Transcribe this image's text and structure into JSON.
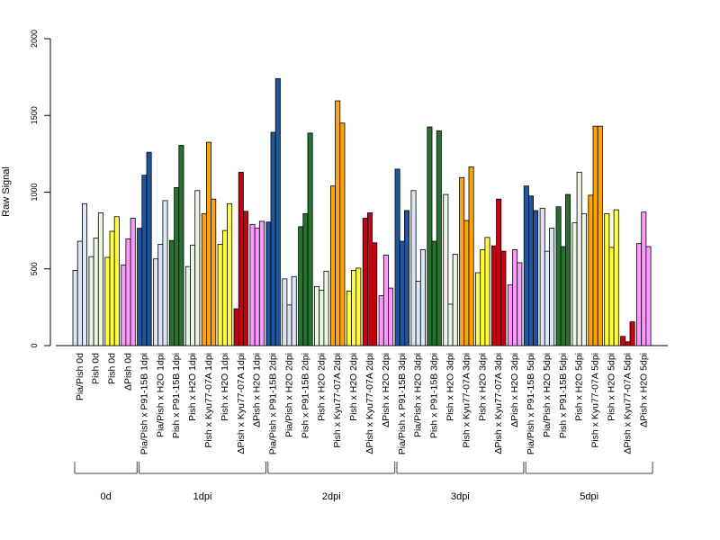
{
  "chart_data": {
    "type": "bar",
    "ylabel": "Raw Signal",
    "ylim": [
      0,
      2000
    ],
    "yticks": [
      0,
      500,
      1000,
      1500,
      2000
    ],
    "grid": false,
    "legend": "none",
    "bars_per_category": 3,
    "categories": [
      {
        "label": "Pia/Pish 0d",
        "color": "#dce7f5",
        "values": [
          490,
          680,
          925
        ]
      },
      {
        "label": "Pish 0d",
        "color": "#eaf5e4",
        "values": [
          580,
          700,
          865
        ]
      },
      {
        "label": "Pish 0d",
        "color": "#ffff33",
        "values": [
          575,
          745,
          840
        ]
      },
      {
        "label": "ΔPish 0d",
        "color": "#ff99ff",
        "values": [
          525,
          695,
          830
        ]
      },
      {
        "label": "Pia/Pish x P91-15B 1dpi",
        "color": "#1f56a0",
        "values": [
          765,
          1110,
          1260
        ]
      },
      {
        "label": "Pia/Pish x H2O 1dpi",
        "color": "#dce7f5",
        "values": [
          565,
          660,
          945
        ]
      },
      {
        "label": "Pish x P91-15B 1dpi",
        "color": "#267330",
        "values": [
          685,
          1030,
          1305
        ]
      },
      {
        "label": "Pish x H2O 1dpi",
        "color": "#eaf5e4",
        "values": [
          515,
          655,
          1010
        ]
      },
      {
        "label": "Pish x Kyu77-07A 1dpi",
        "color": "#ffa500",
        "values": [
          860,
          1325,
          955
        ]
      },
      {
        "label": "Pish x H2O 1dpi",
        "color": "#ffff33",
        "values": [
          660,
          750,
          925
        ]
      },
      {
        "label": "ΔPish x Kyu77-07A 1dpi",
        "color": "#cc0011",
        "values": [
          240,
          1130,
          875
        ]
      },
      {
        "label": "ΔPish x H2O 1dpi",
        "color": "#ff99ff",
        "values": [
          790,
          765,
          810
        ]
      },
      {
        "label": "Pia/Pish x P91-15B 2dpi",
        "color": "#1f56a0",
        "values": [
          805,
          1390,
          1740
        ]
      },
      {
        "label": "Pia/Pish x H2O 2dpi",
        "color": "#dce7f5",
        "values": [
          435,
          265,
          450
        ]
      },
      {
        "label": "Pish x P91-15B 2dpi",
        "color": "#267330",
        "values": [
          775,
          860,
          1385
        ]
      },
      {
        "label": "Pish x H2O 2dpi",
        "color": "#eaf5e4",
        "values": [
          385,
          360,
          485
        ]
      },
      {
        "label": "Pish x Kyu77-07A 2dpi",
        "color": "#ffa500",
        "values": [
          1040,
          1595,
          1450
        ]
      },
      {
        "label": "Pish x H2O 2dpi",
        "color": "#ffff33",
        "values": [
          355,
          490,
          505
        ]
      },
      {
        "label": "ΔPish x Kyu77-07A 2dpi",
        "color": "#cc0011",
        "values": [
          830,
          865,
          670
        ]
      },
      {
        "label": "ΔPish x H2O 2dpi",
        "color": "#ff99ff",
        "values": [
          325,
          590,
          375
        ]
      },
      {
        "label": "Pia/Pish x P91-15B 3dpi",
        "color": "#1f56a0",
        "values": [
          1150,
          680,
          880
        ]
      },
      {
        "label": "Pia/Pish x H2O 3dpi",
        "color": "#dce7f5",
        "values": [
          1010,
          420,
          625
        ]
      },
      {
        "label": "Pish x P91-15B 3dpi",
        "color": "#267330",
        "values": [
          1425,
          680,
          1400
        ]
      },
      {
        "label": "Pish x H2O 3dpi",
        "color": "#eaf5e4",
        "values": [
          985,
          270,
          595
        ]
      },
      {
        "label": "Pish x Kyu77-07A 3dpi",
        "color": "#ffa500",
        "values": [
          1095,
          815,
          1165
        ]
      },
      {
        "label": "Pish x H2O 3dpi",
        "color": "#ffff33",
        "values": [
          475,
          625,
          705
        ]
      },
      {
        "label": "ΔPish x Kyu77-07A 3dpi",
        "color": "#cc0011",
        "values": [
          650,
          955,
          615
        ]
      },
      {
        "label": "ΔPish x H2O 3dpi",
        "color": "#ff99ff",
        "values": [
          395,
          625,
          540
        ]
      },
      {
        "label": "Pia/Pish x P91-15B 5dpi",
        "color": "#1f56a0",
        "values": [
          1040,
          975,
          880
        ]
      },
      {
        "label": "Pia/Pish x H2O 5dpi",
        "color": "#dce7f5",
        "values": [
          895,
          615,
          765
        ]
      },
      {
        "label": "Pish x P91-15B 5dpi",
        "color": "#267330",
        "values": [
          905,
          645,
          985
        ]
      },
      {
        "label": "Pish x H2O 5dpi",
        "color": "#eaf5e4",
        "values": [
          800,
          1130,
          860
        ]
      },
      {
        "label": "Pish x Kyu77-07A 5dpi",
        "color": "#ffa500",
        "values": [
          980,
          1430,
          1430
        ]
      },
      {
        "label": "Pish x H2O 5dpi",
        "color": "#ffff33",
        "values": [
          860,
          640,
          885
        ]
      },
      {
        "label": "ΔPish x Kyu77-07A 5dpi",
        "color": "#cc0011",
        "values": [
          60,
          25,
          155
        ]
      },
      {
        "label": "ΔPish x H2O 5dpi",
        "color": "#ff99ff",
        "values": [
          665,
          870,
          645
        ]
      }
    ],
    "groups": [
      {
        "label": "0d",
        "first": 0,
        "last": 3
      },
      {
        "label": "1dpi",
        "first": 4,
        "last": 11
      },
      {
        "label": "2dpi",
        "first": 12,
        "last": 19
      },
      {
        "label": "3dpi",
        "first": 20,
        "last": 27
      },
      {
        "label": "5dpi",
        "first": 28,
        "last": 35
      }
    ]
  }
}
